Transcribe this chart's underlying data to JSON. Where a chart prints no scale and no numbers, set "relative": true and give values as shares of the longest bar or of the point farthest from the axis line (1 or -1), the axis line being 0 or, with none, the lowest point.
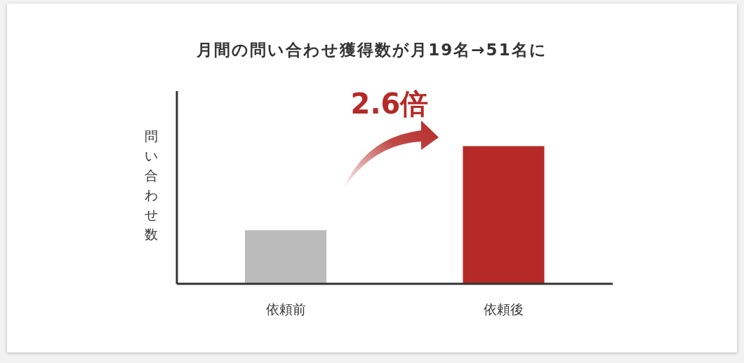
{
  "chart_data": {
    "type": "bar",
    "title": "月間の問い合わせ獲得数が月19名→51名に",
    "ylabel": "問い合わせ数",
    "categories": [
      "依頼前",
      "依頼後"
    ],
    "values": [
      0.39,
      1
    ],
    "colors": [
      "#bbbbbb",
      "#b52a27"
    ],
    "relative": true,
    "annotations": [
      "2.6倍"
    ]
  }
}
